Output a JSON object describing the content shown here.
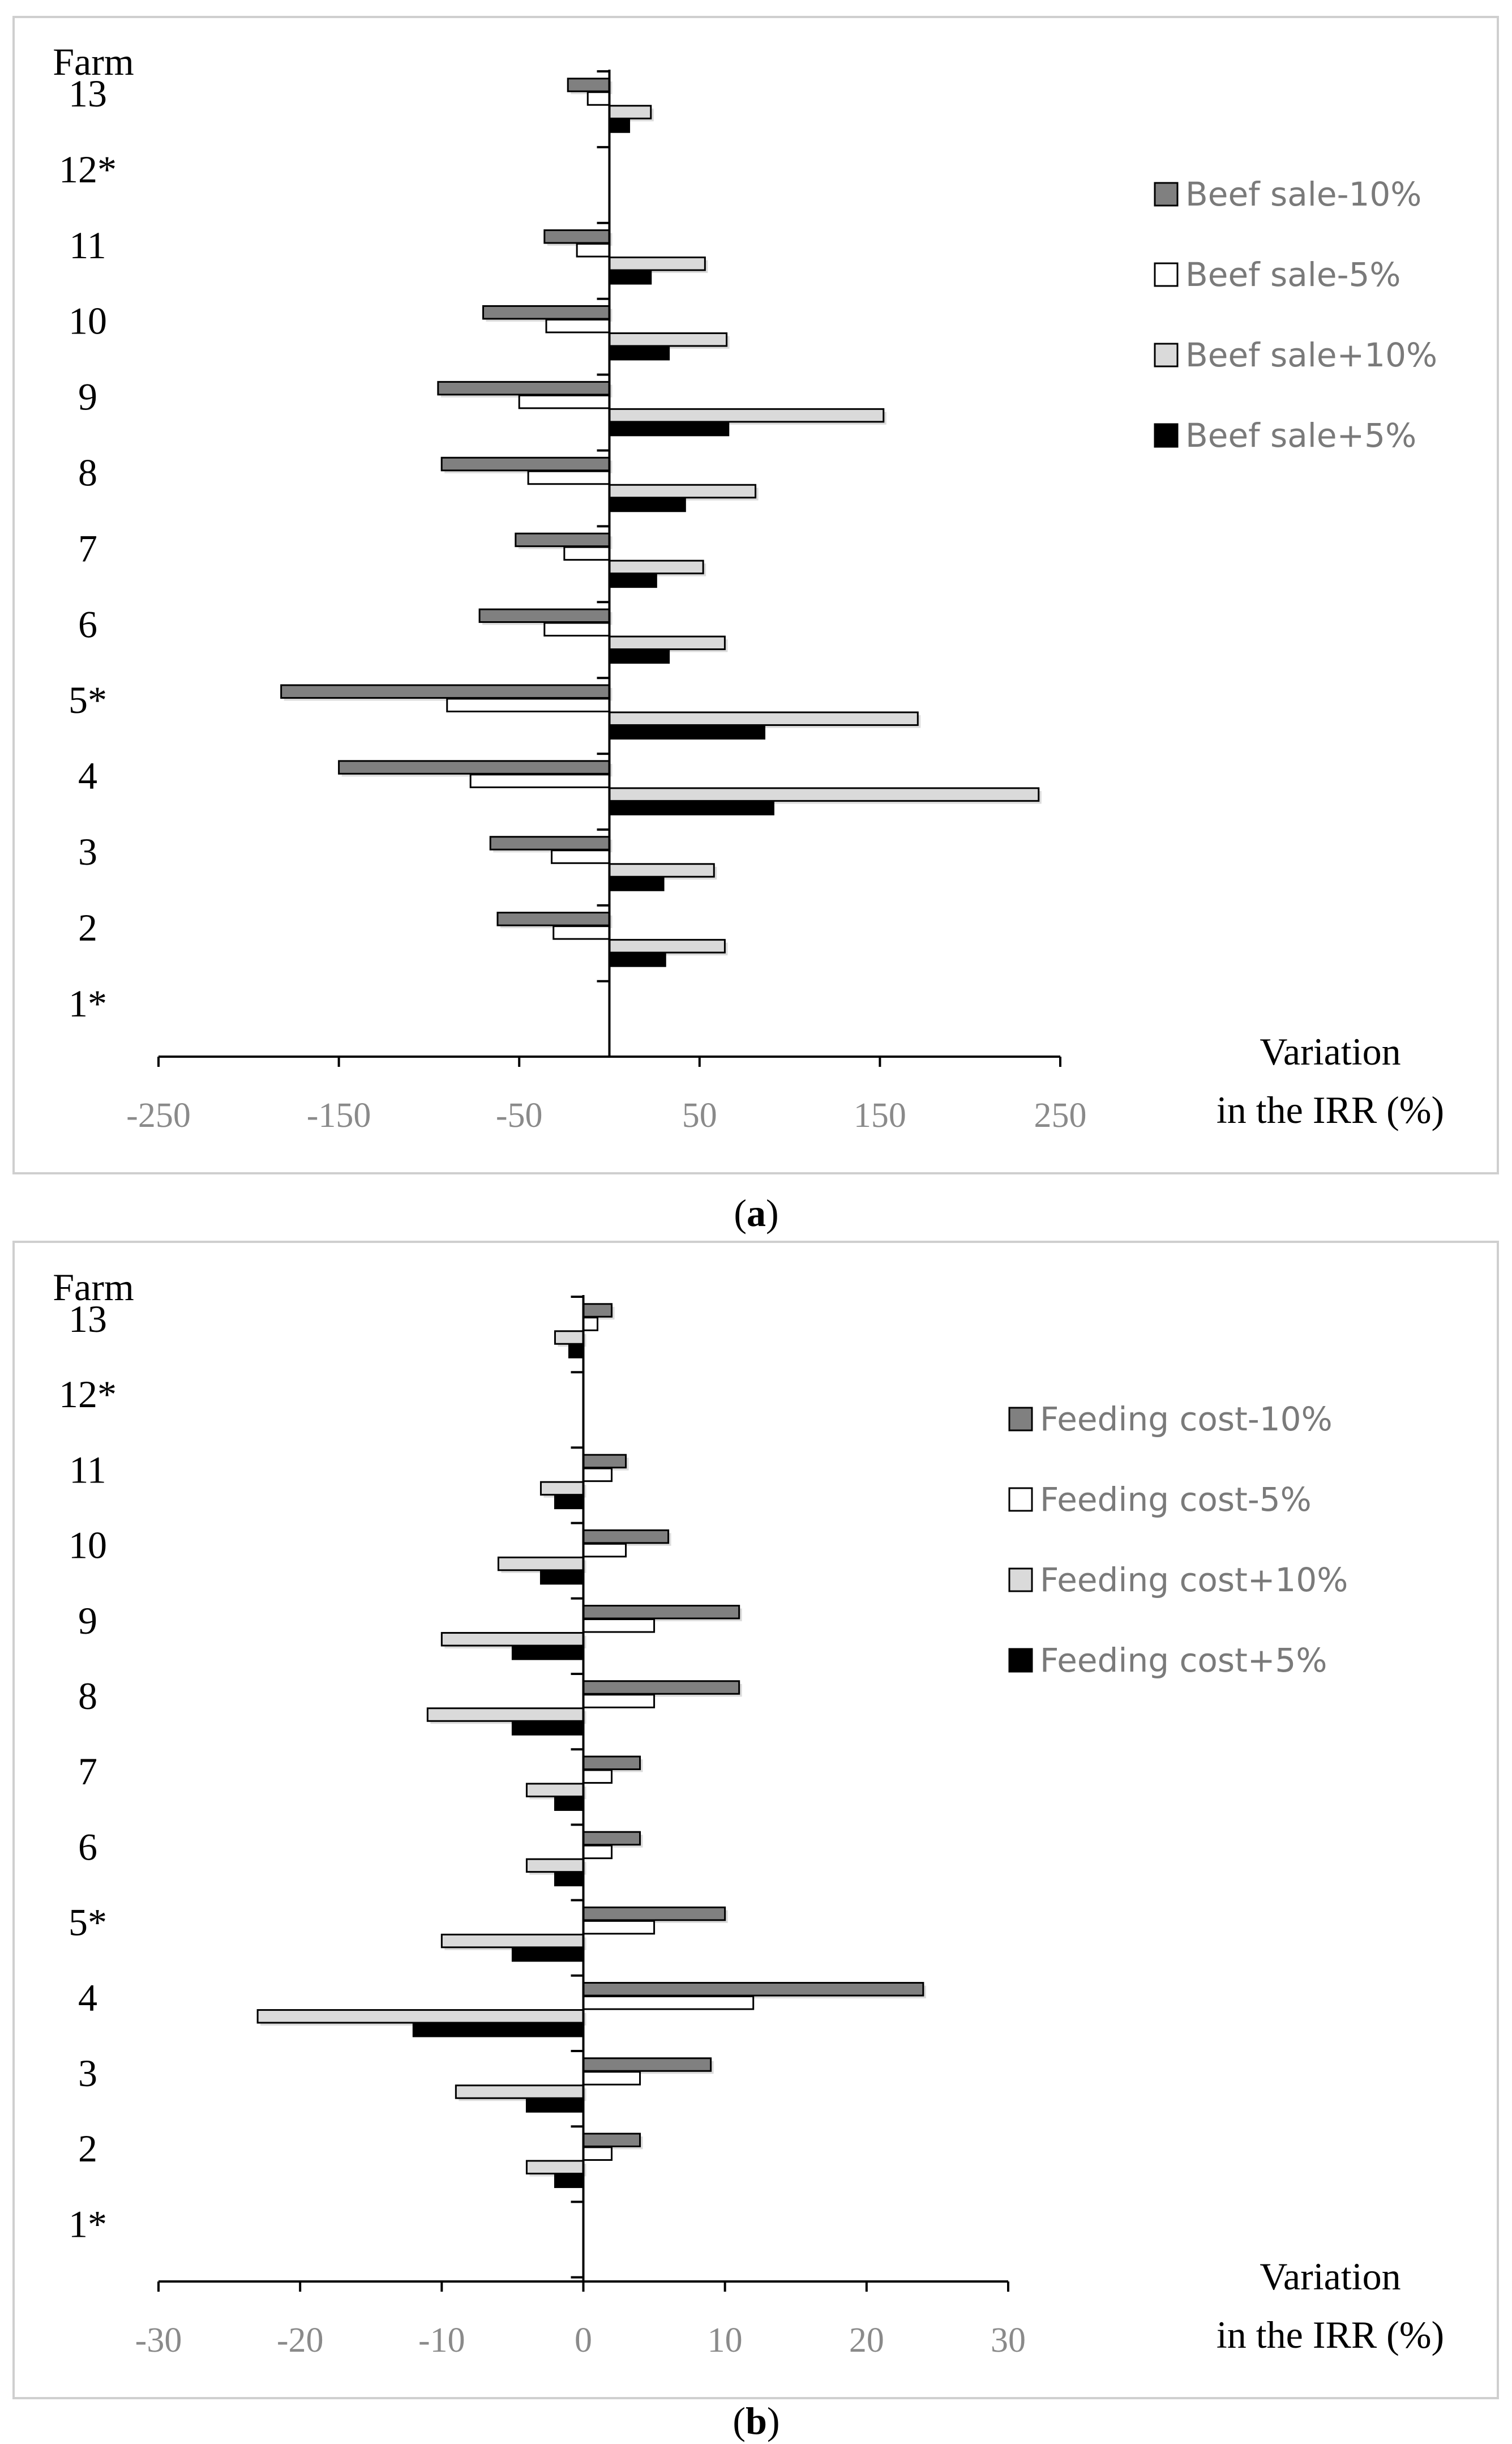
{
  "colors": {
    "minus10": "#808080",
    "minus5": "#ffffff",
    "plus10": "#dadada",
    "plus5": "#000000",
    "axis": "#000000",
    "tick_text": "#8a8a8a",
    "legend_text": "#7a7a7a",
    "frame": "#cfcfcf"
  },
  "chart_data": [
    {
      "type": "bar",
      "orientation": "horizontal",
      "panel_label": "a",
      "y_title": "Farm",
      "x_title_line1": "Variation",
      "x_title_line2": "in the IRR (%)",
      "categories": [
        "13",
        "12*",
        "11",
        "10",
        "9",
        "8",
        "7",
        "6",
        "5*",
        "4",
        "3",
        "2",
        "1*"
      ],
      "xlim": [
        -250,
        250
      ],
      "xticks": [
        -250,
        -150,
        -50,
        50,
        150,
        250
      ],
      "xtick_labels": [
        "-250",
        "-150",
        "-50",
        "50",
        "150",
        "250"
      ],
      "series": [
        {
          "name": "Beef sale-10%",
          "key": "minus10",
          "values": [
            -23,
            null,
            -36,
            -70,
            -95,
            -93,
            -52,
            -72,
            -182,
            -150,
            -66,
            -62,
            null
          ]
        },
        {
          "name": "Beef sale-5%",
          "key": "minus5",
          "values": [
            -12,
            null,
            -18,
            -35,
            -50,
            -45,
            -25,
            -36,
            -90,
            -77,
            -32,
            -31,
            null
          ]
        },
        {
          "name": "Beef sale+10%",
          "key": "plus10",
          "values": [
            23,
            null,
            53,
            65,
            152,
            81,
            52,
            64,
            171,
            238,
            58,
            64,
            null
          ]
        },
        {
          "name": "Beef sale+5%",
          "key": "plus5",
          "values": [
            11,
            null,
            23,
            33,
            66,
            42,
            26,
            33,
            86,
            91,
            30,
            31,
            null
          ]
        }
      ]
    },
    {
      "type": "bar",
      "orientation": "horizontal",
      "panel_label": "b",
      "y_title": "Farm",
      "x_title_line1": "Variation",
      "x_title_line2": "in the IRR (%)",
      "categories": [
        "13",
        "12*",
        "11",
        "10",
        "9",
        "8",
        "7",
        "6",
        "5*",
        "4",
        "3",
        "2",
        "1*"
      ],
      "xlim": [
        -30,
        30
      ],
      "xticks": [
        -30,
        -20,
        -10,
        0,
        10,
        20,
        30
      ],
      "xtick_labels": [
        "-30",
        "-20",
        "-10",
        "0",
        "10",
        "20",
        "30"
      ],
      "series": [
        {
          "name": "Feeding cost-10%",
          "key": "minus10",
          "values": [
            2,
            null,
            3,
            6,
            11,
            11,
            4,
            4,
            10,
            24,
            9,
            4,
            null
          ]
        },
        {
          "name": "Feeding cost-5%",
          "key": "minus5",
          "values": [
            1,
            null,
            2,
            3,
            5,
            5,
            2,
            2,
            5,
            12,
            4,
            2,
            null
          ]
        },
        {
          "name": "Feeding cost+10%",
          "key": "plus10",
          "values": [
            -2,
            null,
            -3,
            -6,
            -10,
            -11,
            -4,
            -4,
            -10,
            -23,
            -9,
            -4,
            null
          ]
        },
        {
          "name": "Feeding cost+5%",
          "key": "plus5",
          "values": [
            -1,
            null,
            -2,
            -3,
            -5,
            -5,
            -2,
            -2,
            -5,
            -12,
            -4,
            -2,
            null
          ]
        }
      ]
    }
  ]
}
